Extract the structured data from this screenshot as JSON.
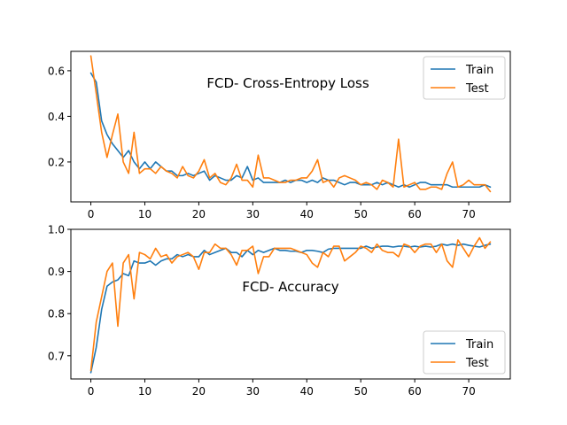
{
  "chart_data": [
    {
      "type": "line",
      "title": "FCD- Cross-Entropy Loss",
      "xlim": [
        -3.7,
        77.7
      ],
      "ylim": [
        0.025,
        0.685
      ],
      "xticks": [
        0,
        10,
        20,
        30,
        40,
        50,
        60,
        70
      ],
      "yticks": [
        0.2,
        0.4,
        0.6
      ],
      "ytick_labels": [
        "0.2",
        "0.4",
        "0.6"
      ],
      "legend_position": "top-right",
      "series": [
        {
          "name": "Train",
          "color": "#1f77b4",
          "x": [
            0,
            1,
            2,
            3,
            4,
            5,
            6,
            7,
            8,
            9,
            10,
            11,
            12,
            13,
            14,
            15,
            16,
            17,
            18,
            19,
            20,
            21,
            22,
            23,
            24,
            25,
            26,
            27,
            28,
            29,
            30,
            31,
            32,
            33,
            34,
            35,
            36,
            37,
            38,
            39,
            40,
            41,
            42,
            43,
            44,
            45,
            46,
            47,
            48,
            49,
            50,
            51,
            52,
            53,
            54,
            55,
            56,
            57,
            58,
            59,
            60,
            61,
            62,
            63,
            64,
            65,
            66,
            67,
            68,
            69,
            70,
            71,
            72,
            73,
            74
          ],
          "values": [
            0.59,
            0.55,
            0.38,
            0.32,
            0.28,
            0.25,
            0.22,
            0.25,
            0.2,
            0.17,
            0.2,
            0.17,
            0.2,
            0.18,
            0.16,
            0.16,
            0.14,
            0.14,
            0.15,
            0.14,
            0.15,
            0.16,
            0.12,
            0.14,
            0.13,
            0.12,
            0.12,
            0.14,
            0.13,
            0.18,
            0.12,
            0.13,
            0.11,
            0.11,
            0.11,
            0.11,
            0.12,
            0.11,
            0.12,
            0.12,
            0.11,
            0.12,
            0.11,
            0.13,
            0.12,
            0.12,
            0.11,
            0.1,
            0.11,
            0.11,
            0.1,
            0.1,
            0.1,
            0.11,
            0.1,
            0.11,
            0.1,
            0.09,
            0.1,
            0.09,
            0.1,
            0.11,
            0.11,
            0.1,
            0.1,
            0.1,
            0.1,
            0.09,
            0.09,
            0.09,
            0.09,
            0.09,
            0.09,
            0.1,
            0.09
          ]
        },
        {
          "name": "Test",
          "color": "#ff7f0e",
          "x": [
            0,
            1,
            2,
            3,
            4,
            5,
            6,
            7,
            8,
            9,
            10,
            11,
            12,
            13,
            14,
            15,
            16,
            17,
            18,
            19,
            20,
            21,
            22,
            23,
            24,
            25,
            26,
            27,
            28,
            29,
            30,
            31,
            32,
            33,
            34,
            35,
            36,
            37,
            38,
            39,
            40,
            41,
            42,
            43,
            44,
            45,
            46,
            47,
            48,
            49,
            50,
            51,
            52,
            53,
            54,
            55,
            56,
            57,
            58,
            59,
            60,
            61,
            62,
            63,
            64,
            65,
            66,
            67,
            68,
            69,
            70,
            71,
            72,
            73,
            74
          ],
          "values": [
            0.665,
            0.5,
            0.33,
            0.22,
            0.32,
            0.41,
            0.2,
            0.15,
            0.33,
            0.15,
            0.17,
            0.17,
            0.15,
            0.18,
            0.16,
            0.15,
            0.13,
            0.18,
            0.14,
            0.13,
            0.16,
            0.21,
            0.13,
            0.15,
            0.11,
            0.1,
            0.13,
            0.19,
            0.12,
            0.12,
            0.09,
            0.23,
            0.13,
            0.13,
            0.12,
            0.11,
            0.11,
            0.12,
            0.12,
            0.13,
            0.13,
            0.16,
            0.21,
            0.11,
            0.12,
            0.09,
            0.13,
            0.14,
            0.13,
            0.12,
            0.1,
            0.11,
            0.1,
            0.08,
            0.12,
            0.11,
            0.09,
            0.3,
            0.09,
            0.1,
            0.11,
            0.08,
            0.08,
            0.09,
            0.09,
            0.08,
            0.15,
            0.2,
            0.09,
            0.1,
            0.12,
            0.1,
            0.1,
            0.1,
            0.07
          ]
        }
      ]
    },
    {
      "type": "line",
      "title": "FCD- Accuracy",
      "xlim": [
        -3.7,
        77.7
      ],
      "ylim": [
        0.645,
        1.0
      ],
      "xticks": [
        0,
        10,
        20,
        30,
        40,
        50,
        60,
        70
      ],
      "yticks": [
        0.7,
        0.8,
        0.9,
        1.0
      ],
      "ytick_labels": [
        "0.7",
        "0.8",
        "0.9",
        "1.0"
      ],
      "legend_position": "bottom-right",
      "series": [
        {
          "name": "Train",
          "color": "#1f77b4",
          "x": [
            0,
            1,
            2,
            3,
            4,
            5,
            6,
            7,
            8,
            9,
            10,
            11,
            12,
            13,
            14,
            15,
            16,
            17,
            18,
            19,
            20,
            21,
            22,
            23,
            24,
            25,
            26,
            27,
            28,
            29,
            30,
            31,
            32,
            33,
            34,
            35,
            36,
            37,
            38,
            39,
            40,
            41,
            42,
            43,
            44,
            45,
            46,
            47,
            48,
            49,
            50,
            51,
            52,
            53,
            54,
            55,
            56,
            57,
            58,
            59,
            60,
            61,
            62,
            63,
            64,
            65,
            66,
            67,
            68,
            69,
            70,
            71,
            72,
            73,
            74
          ],
          "values": [
            0.66,
            0.72,
            0.81,
            0.865,
            0.875,
            0.88,
            0.895,
            0.89,
            0.925,
            0.92,
            0.92,
            0.925,
            0.915,
            0.925,
            0.93,
            0.93,
            0.94,
            0.935,
            0.94,
            0.935,
            0.935,
            0.95,
            0.94,
            0.945,
            0.95,
            0.955,
            0.945,
            0.945,
            0.935,
            0.95,
            0.94,
            0.95,
            0.945,
            0.95,
            0.955,
            0.95,
            0.95,
            0.948,
            0.948,
            0.945,
            0.95,
            0.95,
            0.948,
            0.945,
            0.953,
            0.955,
            0.955,
            0.955,
            0.955,
            0.955,
            0.955,
            0.96,
            0.955,
            0.958,
            0.96,
            0.96,
            0.958,
            0.96,
            0.96,
            0.958,
            0.96,
            0.958,
            0.96,
            0.958,
            0.96,
            0.965,
            0.962,
            0.965,
            0.962,
            0.965,
            0.962,
            0.96,
            0.958,
            0.962,
            0.965
          ]
        },
        {
          "name": "Test",
          "color": "#ff7f0e",
          "x": [
            0,
            1,
            2,
            3,
            4,
            5,
            6,
            7,
            8,
            9,
            10,
            11,
            12,
            13,
            14,
            15,
            16,
            17,
            18,
            19,
            20,
            21,
            22,
            23,
            24,
            25,
            26,
            27,
            28,
            29,
            30,
            31,
            32,
            33,
            34,
            35,
            36,
            37,
            38,
            39,
            40,
            41,
            42,
            43,
            44,
            45,
            46,
            47,
            48,
            49,
            50,
            51,
            52,
            53,
            54,
            55,
            56,
            57,
            58,
            59,
            60,
            61,
            62,
            63,
            64,
            65,
            66,
            67,
            68,
            69,
            70,
            71,
            72,
            73,
            74
          ],
          "values": [
            0.665,
            0.78,
            0.84,
            0.9,
            0.92,
            0.77,
            0.92,
            0.94,
            0.835,
            0.945,
            0.94,
            0.93,
            0.955,
            0.935,
            0.94,
            0.92,
            0.935,
            0.94,
            0.945,
            0.935,
            0.905,
            0.945,
            0.945,
            0.965,
            0.955,
            0.955,
            0.94,
            0.915,
            0.95,
            0.95,
            0.96,
            0.895,
            0.935,
            0.935,
            0.955,
            0.955,
            0.955,
            0.955,
            0.95,
            0.945,
            0.94,
            0.92,
            0.91,
            0.945,
            0.935,
            0.96,
            0.96,
            0.925,
            0.935,
            0.945,
            0.96,
            0.955,
            0.945,
            0.965,
            0.95,
            0.945,
            0.945,
            0.935,
            0.965,
            0.96,
            0.945,
            0.96,
            0.965,
            0.965,
            0.945,
            0.965,
            0.925,
            0.91,
            0.975,
            0.955,
            0.935,
            0.96,
            0.98,
            0.955,
            0.97
          ]
        }
      ]
    }
  ]
}
